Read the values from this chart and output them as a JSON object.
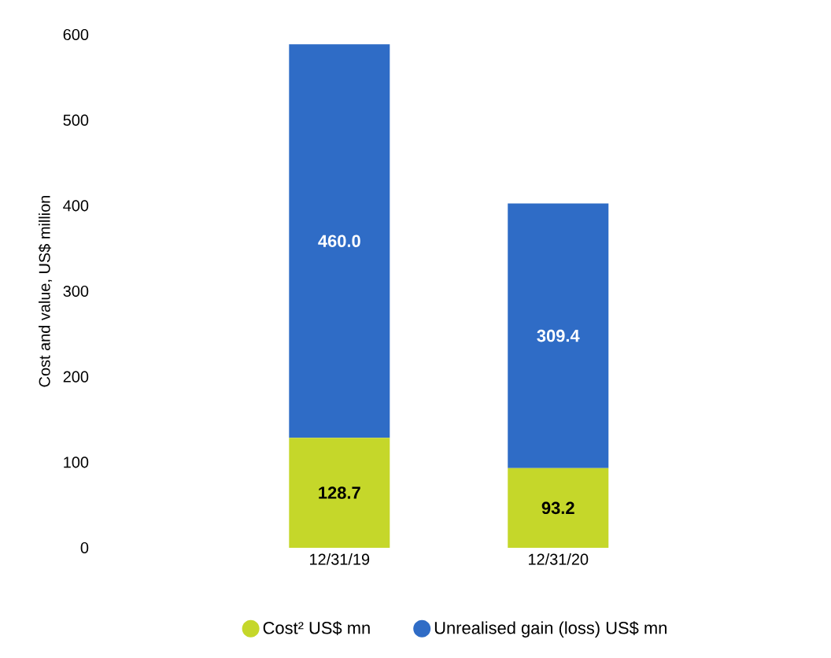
{
  "chart_data": {
    "type": "bar",
    "stacked": true,
    "ylabel": "Cost and value, US$ million",
    "categories": [
      "12/31/19",
      "12/31/20"
    ],
    "series": [
      {
        "name": "Cost² US$ mn",
        "color": "#c5d72a",
        "values": [
          128.7,
          93.2
        ],
        "value_labels": [
          "128.7",
          "93.2"
        ]
      },
      {
        "name": "Unrealised gain (loss) US$ mn",
        "color": "#2f6cc6",
        "values": [
          460.0,
          309.4
        ],
        "value_labels": [
          "460.0",
          "309.4"
        ]
      }
    ],
    "ylim": [
      0,
      600
    ],
    "yticks": [
      0,
      100,
      200,
      300,
      400,
      500,
      600
    ],
    "grid": false,
    "legend": "bottom"
  }
}
